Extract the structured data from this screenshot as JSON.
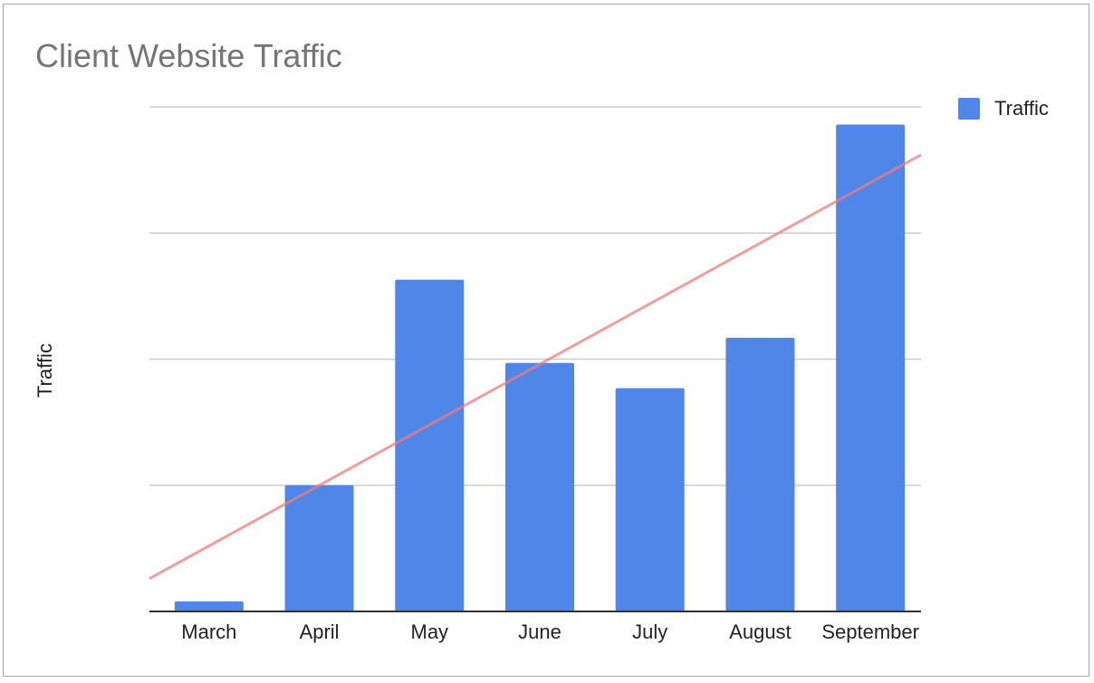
{
  "chart_data": {
    "type": "bar",
    "title": "Client Website Traffic",
    "xlabel": "",
    "ylabel": "Traffic",
    "categories": [
      "March",
      "April",
      "May",
      "June",
      "July",
      "August",
      "September"
    ],
    "series": [
      {
        "name": "Traffic",
        "color": "#4f86e8",
        "values": [
          0.8,
          10,
          26.3,
          19.7,
          17.7,
          21.7,
          38.6
        ]
      }
    ],
    "trendline": {
      "type": "linear",
      "color": "#ee7c7b",
      "start_value": 2.6,
      "end_value": 36.2
    },
    "ylim": [
      0,
      40
    ],
    "gridlines": [
      10,
      20,
      30,
      40
    ],
    "y_tick_labels_visible": false,
    "legend": {
      "position": "right",
      "entries": [
        "Traffic"
      ]
    },
    "grid": true
  }
}
